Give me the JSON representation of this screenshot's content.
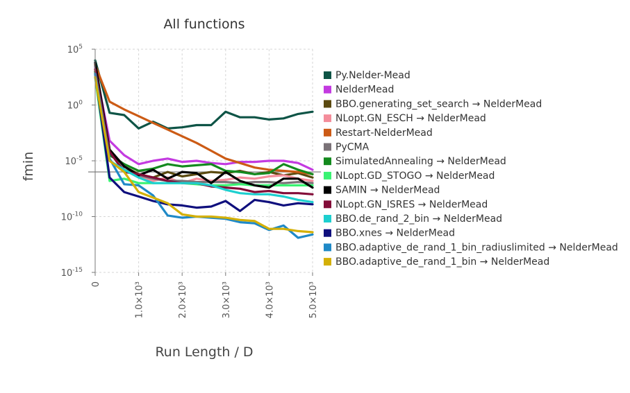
{
  "chart_data": {
    "type": "line",
    "title": "All functions",
    "xlabel": "Run Length / D",
    "ylabel": "fmin",
    "x_scale": "linear",
    "y_scale": "log",
    "xlim": [
      0,
      5000
    ],
    "ylim_exponent": [
      -15,
      5
    ],
    "x_ticks": [
      {
        "value": 0,
        "label": "0"
      },
      {
        "value": 1000,
        "label": "1.0×10³"
      },
      {
        "value": 2000,
        "label": "2.0×10³"
      },
      {
        "value": 3000,
        "label": "3.0×10³"
      },
      {
        "value": 4000,
        "label": "4.0×10³"
      },
      {
        "value": 5000,
        "label": "5.0×10³"
      }
    ],
    "y_ticks": [
      {
        "exp": 5,
        "base": "10",
        "sup": "5"
      },
      {
        "exp": 0,
        "base": "10",
        "sup": "0"
      },
      {
        "exp": -5,
        "base": "10",
        "sup": "-5"
      },
      {
        "exp": -10,
        "base": "10",
        "sup": "-10"
      },
      {
        "exp": -15,
        "base": "10",
        "sup": "-15"
      }
    ],
    "grid": true,
    "legend_position": "right",
    "reference_line_log10": -6.0,
    "x": [
      0,
      333,
      667,
      1000,
      1333,
      1667,
      2000,
      2333,
      2667,
      3000,
      3333,
      3667,
      4000,
      4333,
      4667,
      5000
    ],
    "series": [
      {
        "name": "Py.Nelder-Mead",
        "color": "#0e5446",
        "log10_values": [
          4.0,
          -0.7,
          -0.9,
          -2.1,
          -1.5,
          -2.1,
          -2.0,
          -1.8,
          -1.8,
          -0.6,
          -1.1,
          -1.1,
          -1.3,
          -1.2,
          -0.8,
          -0.6
        ]
      },
      {
        "name": "NelderMead",
        "color": "#c33ae0",
        "log10_values": [
          3.4,
          -3.2,
          -4.5,
          -5.3,
          -5.0,
          -4.8,
          -5.1,
          -5.0,
          -5.2,
          -5.3,
          -5.1,
          -5.1,
          -5.0,
          -5.0,
          -5.2,
          -5.8
        ]
      },
      {
        "name": "BBO.generating_set_search → NelderMead",
        "color": "#5b4a10",
        "log10_values": [
          3.0,
          -4.0,
          -5.5,
          -6.2,
          -6.5,
          -6.0,
          -6.4,
          -6.2,
          -6.0,
          -6.1,
          -5.9,
          -6.2,
          -6.0,
          -6.3,
          -6.1,
          -6.5
        ]
      },
      {
        "name": "NLopt.GN_ESCH → NelderMead",
        "color": "#f48d9b",
        "log10_values": [
          3.2,
          -4.0,
          -5.8,
          -6.5,
          -6.8,
          -6.5,
          -7.0,
          -6.6,
          -6.8,
          -6.7,
          -6.5,
          -6.6,
          -6.4,
          -6.3,
          -6.6,
          -6.8
        ]
      },
      {
        "name": "Restart-NelderMead",
        "color": "#cc5b15",
        "log10_values": [
          3.6,
          0.3,
          -0.4,
          -1.0,
          -1.6,
          -2.2,
          -2.8,
          -3.4,
          -4.1,
          -4.8,
          -5.2,
          -5.6,
          -5.8,
          -5.9,
          -6.0,
          -6.2
        ]
      },
      {
        "name": "PyCMA",
        "color": "#7a7277",
        "log10_values": [
          3.5,
          -4.0,
          -5.8,
          -6.3,
          -6.6,
          -6.8,
          -6.8,
          -6.9,
          -6.9,
          -6.9,
          -7.0,
          -6.9,
          -6.9,
          -7.0,
          -6.9,
          -7.0
        ]
      },
      {
        "name": "SimulatedAnnealing → NelderMead",
        "color": "#138a1e",
        "log10_values": [
          3.0,
          -4.5,
          -5.3,
          -5.9,
          -5.7,
          -5.3,
          -5.5,
          -5.4,
          -5.3,
          -5.9,
          -6.0,
          -6.2,
          -6.1,
          -5.3,
          -5.8,
          -6.2
        ]
      },
      {
        "name": "NLopt.GD_STOGO → NelderMead",
        "color": "#39f372",
        "log10_values": [
          2.5,
          -6.8,
          -6.6,
          -7.0,
          -7.0,
          -7.0,
          -7.0,
          -7.1,
          -7.2,
          -7.2,
          -7.1,
          -7.2,
          -7.2,
          -7.2,
          -7.2,
          -7.2
        ]
      },
      {
        "name": "SAMIN → NelderMead",
        "color": "#000000",
        "log10_values": [
          3.8,
          -4.0,
          -5.5,
          -6.3,
          -5.8,
          -6.6,
          -6.0,
          -6.1,
          -7.0,
          -6.0,
          -6.8,
          -7.2,
          -7.4,
          -6.6,
          -6.6,
          -7.4
        ]
      },
      {
        "name": "NLopt.GN_ISRES → NelderMead",
        "color": "#830c38",
        "log10_values": [
          3.2,
          -4.2,
          -6.0,
          -6.2,
          -6.5,
          -6.8,
          -7.0,
          -7.0,
          -7.3,
          -7.4,
          -7.5,
          -7.8,
          -7.7,
          -7.9,
          -7.9,
          -8.0
        ]
      },
      {
        "name": "BBO.de_rand_2_bin → NelderMead",
        "color": "#1dcfcf",
        "log10_values": [
          2.8,
          -5.0,
          -5.8,
          -6.5,
          -7.0,
          -7.0,
          -7.0,
          -7.0,
          -7.2,
          -7.6,
          -7.9,
          -8.0,
          -8.0,
          -8.2,
          -8.5,
          -8.7
        ]
      },
      {
        "name": "BBO.xnes → NelderMead",
        "color": "#0f0f7d",
        "log10_values": [
          2.8,
          -6.5,
          -7.8,
          -8.2,
          -8.6,
          -8.9,
          -9.0,
          -9.2,
          -9.1,
          -8.6,
          -9.5,
          -8.5,
          -8.7,
          -9.0,
          -8.8,
          -8.9
        ]
      },
      {
        "name": "BBO.adaptive_de_rand_1_bin_radiuslimited → NelderMead",
        "color": "#1f89c7",
        "log10_values": [
          2.8,
          -4.8,
          -7.1,
          -7.2,
          -8.1,
          -9.9,
          -10.1,
          -10.0,
          -10.1,
          -10.2,
          -10.5,
          -10.6,
          -11.2,
          -10.8,
          -11.9,
          -11.6
        ]
      },
      {
        "name": "BBO.adaptive_de_rand_1_bin → NelderMead",
        "color": "#d4b006",
        "log10_values": [
          2.5,
          -5.0,
          -6.0,
          -7.8,
          -8.3,
          -8.8,
          -9.8,
          -10.0,
          -10.0,
          -10.1,
          -10.3,
          -10.4,
          -11.1,
          -11.1,
          -11.3,
          -11.4
        ]
      }
    ]
  }
}
